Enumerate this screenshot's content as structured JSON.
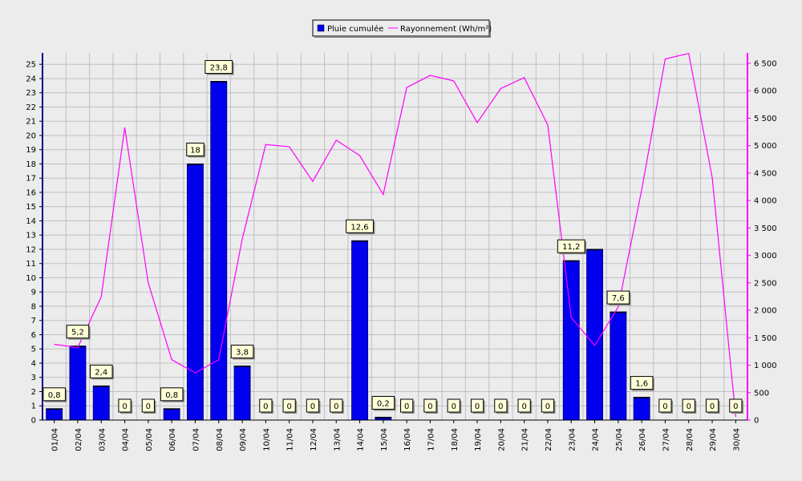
{
  "chart_data": {
    "type": "bar",
    "categories": [
      "01/04",
      "02/04",
      "03/04",
      "04/04",
      "05/04",
      "06/04",
      "07/04",
      "08/04",
      "09/04",
      "10/04",
      "11/04",
      "12/04",
      "13/04",
      "14/04",
      "15/04",
      "16/04",
      "17/04",
      "18/04",
      "19/04",
      "20/04",
      "21/04",
      "22/04",
      "23/04",
      "24/04",
      "25/04",
      "26/04",
      "27/04",
      "28/04",
      "29/04",
      "30/04"
    ],
    "series": [
      {
        "name": "Pluie cumulée",
        "type": "bar",
        "axis": "left",
        "color": "#0000ee",
        "values": [
          0.8,
          5.2,
          2.4,
          0,
          0,
          0.8,
          18,
          23.8,
          3.8,
          0,
          0,
          0,
          0,
          12.6,
          0.2,
          0,
          0,
          0,
          0,
          0,
          0,
          0,
          11.2,
          12,
          7.6,
          1.6,
          0,
          0,
          0,
          0
        ],
        "labels": [
          "0,8",
          "5,2",
          "2,4",
          "0",
          "0",
          "0,8",
          "18",
          "23,8",
          "3,8",
          "0",
          "0",
          "0",
          "0",
          "12,6",
          "0,2",
          "0",
          "0",
          "0",
          "0",
          "0",
          "0",
          "0",
          "11,2",
          "",
          "7,6",
          "1,6",
          "0",
          "0",
          "0",
          "0"
        ]
      },
      {
        "name": "Rayonnement (Wh/m²)",
        "type": "line",
        "axis": "right",
        "color": "#ff00ff",
        "values": [
          1380,
          1320,
          2250,
          5330,
          2500,
          1100,
          860,
          1100,
          3300,
          5020,
          4980,
          4350,
          5100,
          4820,
          4110,
          6060,
          6280,
          6180,
          5420,
          6040,
          6240,
          5380,
          1870,
          1360,
          2060,
          4200,
          6580,
          6680,
          4420,
          60
        ]
      }
    ],
    "y_left": {
      "min": 0,
      "max": 25.8,
      "ticks": [
        "0",
        "1",
        "2",
        "3",
        "4",
        "5",
        "6",
        "7",
        "8",
        "9",
        "10",
        "11",
        "12",
        "13",
        "14",
        "15",
        "16",
        "17",
        "18",
        "19",
        "20",
        "21",
        "22",
        "23",
        "24",
        "25"
      ]
    },
    "y_right": {
      "min": 0,
      "max": 6690,
      "ticks": [
        "0",
        "500",
        "1 000",
        "1 500",
        "2 000",
        "2 500",
        "3 000",
        "3 500",
        "4 000",
        "4 500",
        "5 000",
        "5 500",
        "6 000",
        "6 500"
      ],
      "tick_values": [
        0,
        500,
        1000,
        1500,
        2000,
        2500,
        3000,
        3500,
        4000,
        4500,
        5000,
        5500,
        6000,
        6500
      ]
    },
    "legend_position": "top-center",
    "grid": true
  }
}
